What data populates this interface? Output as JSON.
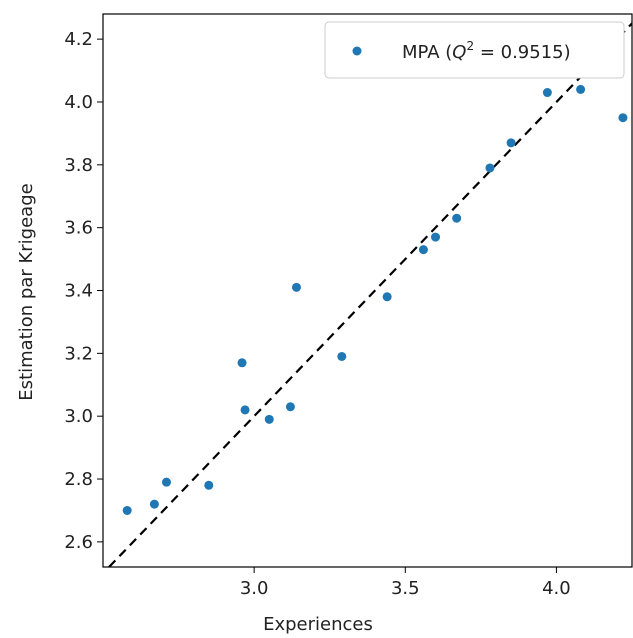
{
  "chart_data": {
    "type": "scatter",
    "xlabel": "Experiences",
    "ylabel": "Estimation par Krigeage",
    "xlim": [
      2.5,
      4.25
    ],
    "ylim": [
      2.52,
      4.28
    ],
    "x_ticks": [
      "3.0",
      "3.5",
      "4.0"
    ],
    "y_ticks": [
      "2.6",
      "2.8",
      "3.0",
      "3.2",
      "3.4",
      "3.6",
      "3.8",
      "4.0",
      "4.2"
    ],
    "grid": false,
    "legend_position": "top-right",
    "reference_line": {
      "style": "dashed",
      "color": "#000000",
      "label": "y = x"
    },
    "series": [
      {
        "name": "MPA (Q² = 0.9515)",
        "legend_prefix": "MPA (",
        "legend_q": "Q",
        "legend_exp": "2",
        "legend_suffix": " = 0.9515)",
        "color": "#1f77b4",
        "points": [
          [
            2.58,
            2.7
          ],
          [
            2.67,
            2.72
          ],
          [
            2.71,
            2.79
          ],
          [
            2.85,
            2.78
          ],
          [
            2.96,
            3.17
          ],
          [
            2.97,
            3.02
          ],
          [
            3.05,
            2.99
          ],
          [
            3.12,
            3.03
          ],
          [
            3.14,
            3.41
          ],
          [
            3.29,
            3.19
          ],
          [
            3.44,
            3.38
          ],
          [
            3.56,
            3.53
          ],
          [
            3.6,
            3.57
          ],
          [
            3.67,
            3.63
          ],
          [
            3.78,
            3.79
          ],
          [
            3.85,
            3.87
          ],
          [
            3.97,
            4.03
          ],
          [
            4.08,
            4.04
          ],
          [
            4.22,
            3.95
          ]
        ]
      }
    ]
  }
}
